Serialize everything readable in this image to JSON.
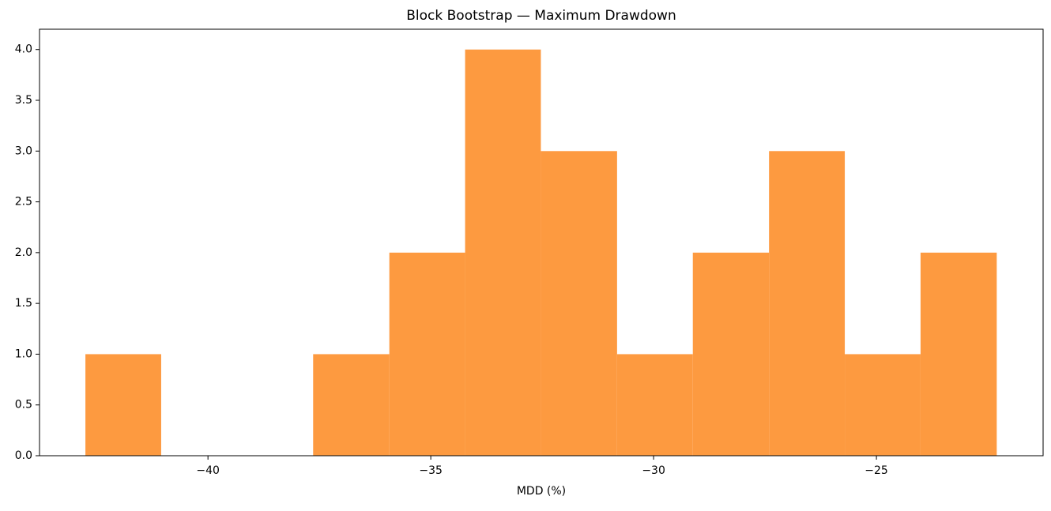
{
  "chart_data": {
    "type": "histogram",
    "title": "Block Bootstrap — Maximum Drawdown",
    "x_label": "MDD (%)",
    "bins": [
      -42.75,
      -41.05,
      -39.34,
      -37.64,
      -35.93,
      -34.23,
      -32.53,
      -30.82,
      -29.12,
      -27.41,
      -25.71,
      -24.01,
      -22.3
    ],
    "values": [
      1,
      0,
      0,
      1,
      2,
      4,
      3,
      1,
      2,
      3,
      1,
      2
    ],
    "color": "#fd9a40",
    "xlim": [
      -43.78,
      -21.26
    ],
    "xticks": [
      {
        "value": -40,
        "label": "−40"
      },
      {
        "value": -35,
        "label": "−35"
      },
      {
        "value": -30,
        "label": "−30"
      },
      {
        "value": -25,
        "label": "−25"
      }
    ],
    "ylim": [
      0,
      4.2
    ],
    "yticks": [
      {
        "value": 0,
        "label": "0.0"
      },
      {
        "value": 0.5,
        "label": "0.5"
      },
      {
        "value": 1,
        "label": "1.0"
      },
      {
        "value": 1.5,
        "label": "1.5"
      },
      {
        "value": 2,
        "label": "2.0"
      },
      {
        "value": 2.5,
        "label": "2.5"
      },
      {
        "value": 3,
        "label": "3.0"
      },
      {
        "value": 3.5,
        "label": "3.5"
      },
      {
        "value": 4,
        "label": "4.0"
      }
    ]
  }
}
